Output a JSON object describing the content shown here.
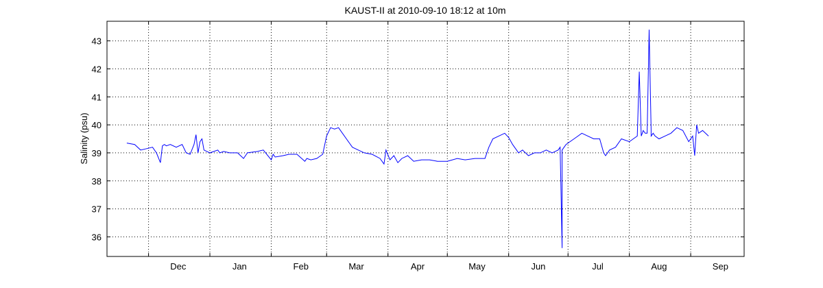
{
  "chart_data": {
    "type": "line",
    "title": "KAUST-II at 2010-09-10 18:12 at 10m",
    "xlabel": "",
    "ylabel": "Salinity (psu)",
    "grid": true,
    "x_ticks": [
      "Dec",
      "Jan",
      "Feb",
      "Mar",
      "Apr",
      "May",
      "Jun",
      "Jul",
      "Aug",
      "Sep"
    ],
    "y_ticks": [
      "36",
      "37",
      "38",
      "39",
      "40",
      "41",
      "42",
      "43"
    ],
    "ylim": [
      35.3,
      43.7
    ],
    "xlim": [
      "2009-11-10",
      "2010-09-28"
    ],
    "line_color": "#0000ff",
    "series": [
      {
        "name": "",
        "x": [
          "2009-11-20",
          "2009-11-24",
          "2009-11-27",
          "2009-11-30",
          "2009-12-03",
          "2009-12-05",
          "2009-12-07",
          "2009-12-08",
          "2009-12-09",
          "2009-12-10",
          "2009-12-12",
          "2009-12-15",
          "2009-12-18",
          "2009-12-20",
          "2009-12-22",
          "2009-12-24",
          "2009-12-25",
          "2009-12-26",
          "2009-12-27",
          "2009-12-28",
          "2009-12-29",
          "2010-01-01",
          "2010-01-03",
          "2010-01-05",
          "2010-01-06",
          "2010-01-08",
          "2010-01-11",
          "2010-01-15",
          "2010-01-18",
          "2010-01-20",
          "2010-01-25",
          "2010-01-28",
          "2010-02-01",
          "2010-02-02",
          "2010-02-03",
          "2010-02-07",
          "2010-02-10",
          "2010-02-14",
          "2010-02-18",
          "2010-02-19",
          "2010-02-21",
          "2010-02-24",
          "2010-02-27",
          "2010-03-01",
          "2010-03-03",
          "2010-03-05",
          "2010-03-07",
          "2010-03-09",
          "2010-03-11",
          "2010-03-14",
          "2010-03-17",
          "2010-03-20",
          "2010-03-24",
          "2010-03-28",
          "2010-03-30",
          "2010-03-31",
          "2010-04-02",
          "2010-04-04",
          "2010-04-06",
          "2010-04-08",
          "2010-04-11",
          "2010-04-14",
          "2010-04-18",
          "2010-04-22",
          "2010-04-26",
          "2010-05-01",
          "2010-05-06",
          "2010-05-10",
          "2010-05-15",
          "2010-05-20",
          "2010-05-22",
          "2010-05-24",
          "2010-05-27",
          "2010-05-30",
          "2010-06-01",
          "2010-06-03",
          "2010-06-06",
          "2010-06-08",
          "2010-06-11",
          "2010-06-14",
          "2010-06-17",
          "2010-06-20",
          "2010-06-23",
          "2010-06-26",
          "2010-06-27",
          "2010-06-28",
          "2010-06-28",
          "2010-06-29",
          "2010-06-30",
          "2010-07-02",
          "2010-07-05",
          "2010-07-08",
          "2010-07-11",
          "2010-07-14",
          "2010-07-17",
          "2010-07-19",
          "2010-07-20",
          "2010-07-22",
          "2010-07-25",
          "2010-07-28",
          "2010-08-01",
          "2010-08-03",
          "2010-08-05",
          "2010-08-06",
          "2010-08-07",
          "2010-08-08",
          "2010-08-09",
          "2010-08-10",
          "2010-08-11",
          "2010-08-12",
          "2010-08-12",
          "2010-08-13",
          "2010-08-14",
          "2010-08-16",
          "2010-08-19",
          "2010-08-22",
          "2010-08-25",
          "2010-08-28",
          "2010-08-31",
          "2010-09-02",
          "2010-09-03",
          "2010-09-04",
          "2010-09-05",
          "2010-09-07",
          "2010-09-10"
        ],
        "y": [
          39.35,
          39.3,
          39.1,
          39.15,
          39.2,
          39.0,
          38.65,
          39.25,
          39.3,
          39.25,
          39.3,
          39.2,
          39.3,
          39.0,
          38.95,
          39.3,
          39.65,
          39.0,
          39.4,
          39.5,
          39.1,
          39.0,
          39.05,
          39.1,
          39.0,
          39.05,
          39.0,
          39.0,
          38.8,
          39.0,
          39.05,
          39.1,
          38.75,
          38.95,
          38.85,
          38.9,
          38.95,
          38.95,
          38.7,
          38.8,
          38.75,
          38.8,
          38.95,
          39.6,
          39.9,
          39.85,
          39.9,
          39.7,
          39.5,
          39.2,
          39.1,
          39.0,
          38.95,
          38.8,
          38.6,
          39.1,
          38.75,
          38.9,
          38.65,
          38.8,
          38.9,
          38.7,
          38.75,
          38.75,
          38.7,
          38.7,
          38.8,
          38.75,
          38.8,
          38.8,
          39.2,
          39.5,
          39.6,
          39.7,
          39.55,
          39.3,
          39.0,
          39.1,
          38.9,
          39.0,
          39.0,
          39.1,
          39.0,
          39.1,
          39.2,
          35.6,
          39.1,
          39.2,
          39.3,
          39.4,
          39.55,
          39.7,
          39.6,
          39.5,
          39.5,
          39.0,
          38.9,
          39.1,
          39.2,
          39.5,
          39.4,
          39.5,
          39.6,
          41.9,
          39.6,
          39.8,
          39.7,
          39.7,
          43.4,
          39.8,
          39.6,
          39.7,
          39.6,
          39.5,
          39.6,
          39.7,
          39.9,
          39.8,
          39.4,
          39.6,
          38.9,
          40.0,
          39.7,
          39.8,
          39.6
        ]
      }
    ]
  }
}
